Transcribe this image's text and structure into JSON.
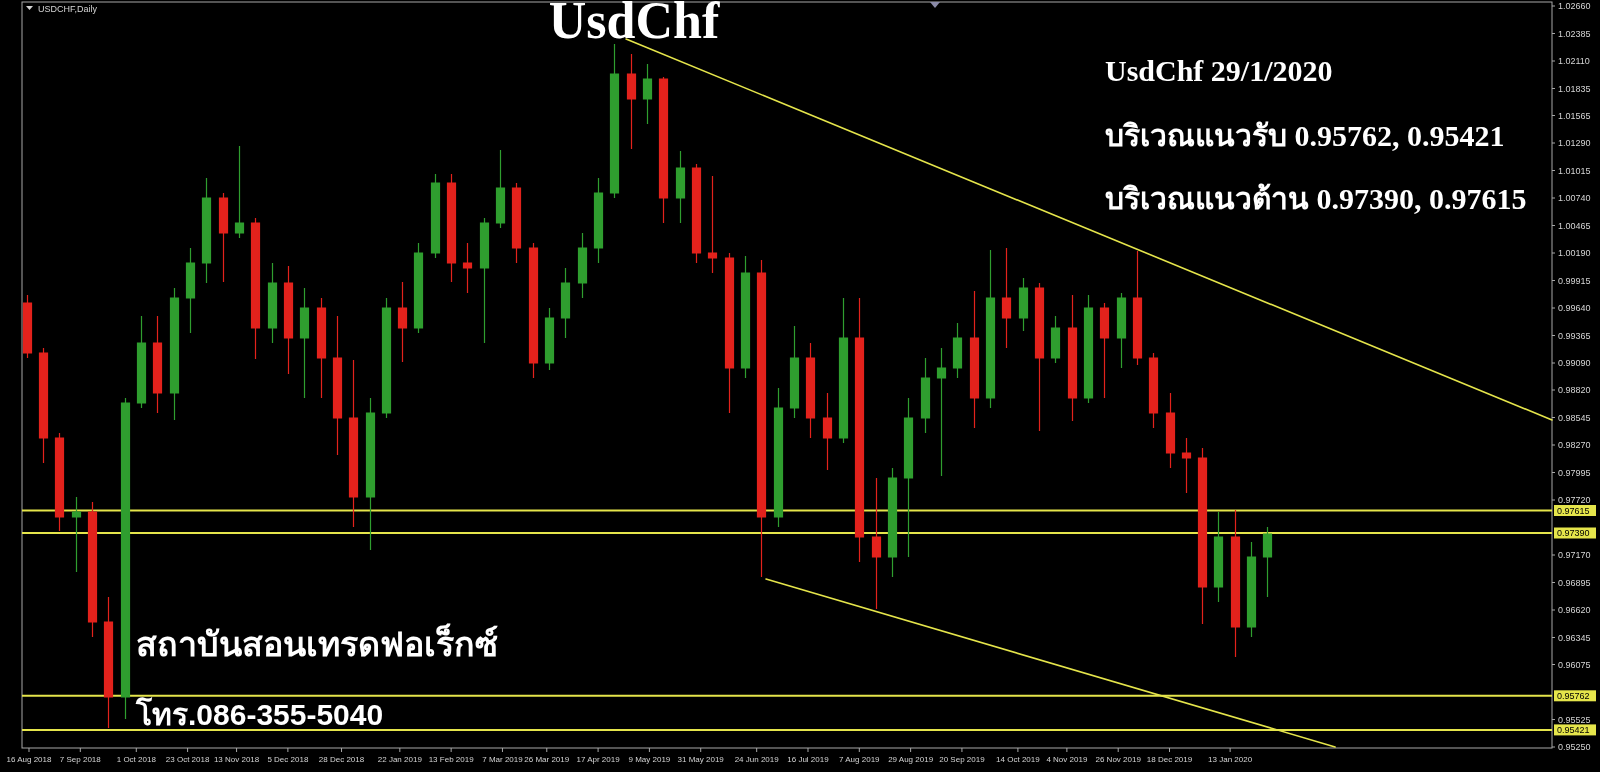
{
  "chart_data": {
    "type": "candlestick",
    "title": "UsdChf",
    "annotations": [
      "USDCHF,Daily",
      "UsdChf 29/1/2020",
      "บริเวณแนวรับ 0.95762, 0.95421",
      "บริเวณแนวต้าน 0.97390, 0.97615",
      "สถาบันสอนเทรดฟอเร็กซ์",
      "โทร.086-355-5040"
    ],
    "x": [
      "2018-08-15",
      "2018-08-22",
      "2018-08-29",
      "2018-09-05",
      "2018-09-12",
      "2018-09-19",
      "2018-09-26",
      "2018-10-03",
      "2018-10-10",
      "2018-10-17",
      "2018-10-24",
      "2018-10-31",
      "2018-11-07",
      "2018-11-14",
      "2018-11-21",
      "2018-11-28",
      "2018-12-05",
      "2018-12-12",
      "2018-12-19",
      "2018-12-26",
      "2019-01-02",
      "2019-01-09",
      "2019-01-16",
      "2019-01-23",
      "2019-01-30",
      "2019-02-06",
      "2019-02-13",
      "2019-02-20",
      "2019-02-27",
      "2019-03-06",
      "2019-03-13",
      "2019-03-20",
      "2019-03-27",
      "2019-04-03",
      "2019-04-10",
      "2019-04-17",
      "2019-04-24",
      "2019-05-01",
      "2019-05-08",
      "2019-05-15",
      "2019-05-22",
      "2019-05-29",
      "2019-06-05",
      "2019-06-12",
      "2019-06-19",
      "2019-06-26",
      "2019-07-03",
      "2019-07-10",
      "2019-07-17",
      "2019-07-24",
      "2019-07-31",
      "2019-08-07",
      "2019-08-14",
      "2019-08-21",
      "2019-08-28",
      "2019-09-04",
      "2019-09-11",
      "2019-09-18",
      "2019-09-25",
      "2019-10-02",
      "2019-10-09",
      "2019-10-16",
      "2019-10-23",
      "2019-10-30",
      "2019-11-06",
      "2019-11-13",
      "2019-11-20",
      "2019-11-27",
      "2019-12-04",
      "2019-12-11",
      "2019-12-18",
      "2019-12-25",
      "2020-01-01",
      "2020-01-08",
      "2020-01-15",
      "2020-01-22",
      "2020-01-29"
    ],
    "ohlc": [
      [
        0.9969,
        0.9977,
        0.9914,
        0.9919
      ],
      [
        0.9919,
        0.9924,
        0.9809,
        0.9834
      ],
      [
        0.9834,
        0.9839,
        0.9741,
        0.9755
      ],
      [
        0.9755,
        0.9775,
        0.97,
        0.976
      ],
      [
        0.976,
        0.977,
        0.9635,
        0.965
      ],
      [
        0.965,
        0.9675,
        0.9544,
        0.9575
      ],
      [
        0.9575,
        0.9874,
        0.9553,
        0.9869
      ],
      [
        0.9869,
        0.9956,
        0.9864,
        0.9929
      ],
      [
        0.9929,
        0.9956,
        0.9859,
        0.9879
      ],
      [
        0.9879,
        0.9984,
        0.9852,
        0.9974
      ],
      [
        0.9974,
        1.0024,
        0.9939,
        1.0009
      ],
      [
        1.0009,
        1.0094,
        0.9989,
        1.0074
      ],
      [
        1.0074,
        1.0079,
        0.999,
        1.0039
      ],
      [
        1.0039,
        1.0126,
        1.0034,
        1.0049
      ],
      [
        1.0049,
        1.0054,
        0.9913,
        0.9944
      ],
      [
        0.9944,
        1.0009,
        0.9929,
        0.9989
      ],
      [
        0.9989,
        1.0006,
        0.9898,
        0.9934
      ],
      [
        0.9934,
        0.9984,
        0.9874,
        0.9964
      ],
      [
        0.9964,
        0.9974,
        0.9874,
        0.9914
      ],
      [
        0.9914,
        0.9956,
        0.9817,
        0.9854
      ],
      [
        0.9854,
        0.9912,
        0.9745,
        0.9775
      ],
      [
        0.9775,
        0.9874,
        0.9722,
        0.9859
      ],
      [
        0.9859,
        0.9974,
        0.9854,
        0.9964
      ],
      [
        0.9964,
        0.999,
        0.991,
        0.9944
      ],
      [
        0.9944,
        1.0029,
        0.9939,
        1.0019
      ],
      [
        1.0019,
        1.0098,
        1.0014,
        1.0089
      ],
      [
        1.0089,
        1.0098,
        0.999,
        1.0009
      ],
      [
        1.0009,
        1.0029,
        0.9979,
        1.0004
      ],
      [
        1.0004,
        1.0054,
        0.9929,
        1.0049
      ],
      [
        1.0049,
        1.0122,
        1.0044,
        1.0084
      ],
      [
        1.0084,
        1.0089,
        1.0009,
        1.0024
      ],
      [
        1.0024,
        1.0029,
        0.9894,
        0.9909
      ],
      [
        0.9909,
        0.9964,
        0.9902,
        0.9954
      ],
      [
        0.9954,
        1.0004,
        0.9934,
        0.9989
      ],
      [
        0.9989,
        1.0039,
        0.9974,
        1.0024
      ],
      [
        1.0024,
        1.0094,
        1.0009,
        1.0079
      ],
      [
        1.0079,
        1.0228,
        1.0074,
        1.0198
      ],
      [
        1.0198,
        1.0218,
        1.0123,
        1.0173
      ],
      [
        1.0173,
        1.0208,
        1.0148,
        1.0193
      ],
      [
        1.0193,
        1.0195,
        1.0049,
        1.0074
      ],
      [
        1.0074,
        1.0121,
        1.0049,
        1.0104
      ],
      [
        1.0104,
        1.0108,
        1.0009,
        1.0019
      ],
      [
        1.0019,
        1.0096,
        0.9999,
        1.0014
      ],
      [
        1.0014,
        1.0019,
        0.9859,
        0.9904
      ],
      [
        0.9904,
        1.0016,
        0.9894,
        0.9999
      ],
      [
        0.9999,
        1.0012,
        0.9695,
        0.9755
      ],
      [
        0.9755,
        0.9884,
        0.9745,
        0.9864
      ],
      [
        0.9864,
        0.9946,
        0.9854,
        0.9914
      ],
      [
        0.9914,
        0.9929,
        0.9834,
        0.9854
      ],
      [
        0.9854,
        0.9879,
        0.9802,
        0.9834
      ],
      [
        0.9834,
        0.9974,
        0.9829,
        0.9934
      ],
      [
        0.9934,
        0.9974,
        0.971,
        0.9735
      ],
      [
        0.9735,
        0.9794,
        0.9663,
        0.9715
      ],
      [
        0.9715,
        0.9804,
        0.9695,
        0.9794
      ],
      [
        0.9794,
        0.9874,
        0.9715,
        0.9854
      ],
      [
        0.9854,
        0.9914,
        0.9839,
        0.9894
      ],
      [
        0.9894,
        0.9924,
        0.9796,
        0.9904
      ],
      [
        0.9904,
        0.9949,
        0.9894,
        0.9934
      ],
      [
        0.9934,
        0.9981,
        0.9844,
        0.9874
      ],
      [
        0.9874,
        1.0022,
        0.9864,
        0.9974
      ],
      [
        0.9974,
        1.0024,
        0.9924,
        0.9954
      ],
      [
        0.9954,
        0.9994,
        0.9941,
        0.9984
      ],
      [
        0.9984,
        0.9989,
        0.9841,
        0.9914
      ],
      [
        0.9914,
        0.9956,
        0.9909,
        0.9944
      ],
      [
        0.9944,
        0.9977,
        0.9851,
        0.9874
      ],
      [
        0.9874,
        0.9977,
        0.9869,
        0.9964
      ],
      [
        0.9964,
        0.9969,
        0.9874,
        0.9934
      ],
      [
        0.9934,
        0.9979,
        0.9904,
        0.9974
      ],
      [
        0.9974,
        1.0021,
        0.9907,
        0.9914
      ],
      [
        0.9914,
        0.9919,
        0.9844,
        0.9859
      ],
      [
        0.9859,
        0.9879,
        0.9804,
        0.9819
      ],
      [
        0.9819,
        0.9834,
        0.9779,
        0.9814
      ],
      [
        0.9814,
        0.9824,
        0.9648,
        0.9685
      ],
      [
        0.9685,
        0.976,
        0.967,
        0.9735
      ],
      [
        0.9735,
        0.9762,
        0.9615,
        0.9645
      ],
      [
        0.9645,
        0.973,
        0.9635,
        0.9715
      ],
      [
        0.9715,
        0.9745,
        0.9675,
        0.9738
      ]
    ],
    "colors": [
      "#e3221c",
      "#e3221c",
      "#e3221c",
      "#2f9e2f",
      "#e3221c",
      "#e3221c",
      "#2f9e2f",
      "#2f9e2f",
      "#e3221c",
      "#2f9e2f",
      "#2f9e2f",
      "#2f9e2f",
      "#e3221c",
      "#2f9e2f",
      "#e3221c",
      "#2f9e2f",
      "#e3221c",
      "#2f9e2f",
      "#e3221c",
      "#e3221c",
      "#e3221c",
      "#2f9e2f",
      "#2f9e2f",
      "#e3221c",
      "#2f9e2f",
      "#2f9e2f",
      "#e3221c",
      "#e3221c",
      "#2f9e2f",
      "#2f9e2f",
      "#e3221c",
      "#e3221c",
      "#2f9e2f",
      "#2f9e2f",
      "#2f9e2f",
      "#2f9e2f",
      "#2f9e2f",
      "#e3221c",
      "#2f9e2f",
      "#e3221c",
      "#2f9e2f",
      "#e3221c",
      "#e3221c",
      "#e3221c",
      "#2f9e2f",
      "#e3221c",
      "#2f9e2f",
      "#2f9e2f",
      "#e3221c",
      "#e3221c",
      "#2f9e2f",
      "#e3221c",
      "#e3221c",
      "#2f9e2f",
      "#2f9e2f",
      "#2f9e2f",
      "#2f9e2f",
      "#2f9e2f",
      "#e3221c",
      "#2f9e2f",
      "#e3221c",
      "#2f9e2f",
      "#e3221c",
      "#2f9e2f",
      "#e3221c",
      "#2f9e2f",
      "#e3221c",
      "#2f9e2f",
      "#e3221c",
      "#e3221c",
      "#e3221c",
      "#e3221c",
      "#e3221c",
      "#2f9e2f",
      "#e3221c",
      "#2f9e2f",
      "#2f9e2f"
    ],
    "series": [
      {
        "type": "line",
        "color": "#e5e54b",
        "x": [
          "2019-04-29",
          "2020-05-30"
        ],
        "values": [
          1.0233,
          0.9852
        ]
      },
      {
        "type": "line",
        "color": "#e5e54b",
        "x": [
          "2019-06-28",
          "2020-02-27"
        ],
        "values": [
          0.9693,
          0.9525
        ]
      }
    ],
    "xlim": [
      "2018-08-13",
      "2020-05-30"
    ],
    "xticks": [
      {
        "value": "2018-08-16",
        "label": "16 Aug 2018"
      },
      {
        "value": "2018-09-07",
        "label": "7 Sep 2018"
      },
      {
        "value": "2018-10-01",
        "label": "1 Oct 2018"
      },
      {
        "value": "2018-10-23",
        "label": "23 Oct 2018"
      },
      {
        "value": "2018-11-13",
        "label": "13 Nov 2018"
      },
      {
        "value": "2018-12-05",
        "label": "5 Dec 2018"
      },
      {
        "value": "2018-12-28",
        "label": "28 Dec 2018"
      },
      {
        "value": "2019-01-22",
        "label": "22 Jan 2019"
      },
      {
        "value": "2019-02-13",
        "label": "13 Feb 2019"
      },
      {
        "value": "2019-03-07",
        "label": "7 Mar 2019"
      },
      {
        "value": "2019-03-26",
        "label": "26 Mar 2019"
      },
      {
        "value": "2019-04-17",
        "label": "17 Apr 2019"
      },
      {
        "value": "2019-05-09",
        "label": "9 May 2019"
      },
      {
        "value": "2019-05-31",
        "label": "31 May 2019"
      },
      {
        "value": "2019-06-24",
        "label": "24 Jun 2019"
      },
      {
        "value": "2019-07-16",
        "label": "16 Jul 2019"
      },
      {
        "value": "2019-08-07",
        "label": "7 Aug 2019"
      },
      {
        "value": "2019-08-29",
        "label": "29 Aug 2019"
      },
      {
        "value": "2019-09-20",
        "label": "20 Sep 2019"
      },
      {
        "value": "2019-10-14",
        "label": "14 Oct 2019"
      },
      {
        "value": "2019-11-04",
        "label": "4 Nov 2019"
      },
      {
        "value": "2019-11-26",
        "label": "26 Nov 2019"
      },
      {
        "value": "2019-12-18",
        "label": "18 Dec 2019"
      },
      {
        "value": "2020-01-13",
        "label": "13 Jan 2020"
      }
    ],
    "ylim": [
      0.9524,
      1.027
    ],
    "yticks": [
      {
        "value": 1.0266,
        "label": "1.02660"
      },
      1.02385,
      {
        "value": 1.0211,
        "label": "1.02110"
      },
      1.01835,
      1.01565,
      {
        "value": 1.0129,
        "label": "1.01290"
      },
      1.01015,
      {
        "value": 1.0074,
        "label": "1.00740"
      },
      1.00465,
      {
        "value": 1.0019,
        "label": "1.00190"
      },
      0.99915,
      {
        "value": 0.9964,
        "label": "0.99640"
      },
      0.99365,
      {
        "value": 0.9909,
        "label": "0.99090"
      },
      {
        "value": 0.9882,
        "label": "0.98820"
      },
      0.98545,
      {
        "value": 0.9827,
        "label": "0.98270"
      },
      0.97995,
      {
        "value": 0.9772,
        "label": "0.97720"
      },
      {
        "value": 0.9717,
        "label": "0.97170"
      },
      0.96895,
      {
        "value": 0.9662,
        "label": "0.96620"
      },
      0.96345,
      0.96075,
      0.95525,
      {
        "value": 0.9525,
        "label": "0.95250"
      }
    ],
    "ref_lines": [
      {
        "axis": "y",
        "value": 0.97615,
        "label": "0.97615",
        "color": "#e5e54b"
      },
      {
        "axis": "y",
        "value": 0.9739,
        "label": "0.97390",
        "color": "#e5e54b"
      },
      {
        "axis": "y",
        "value": 0.95762,
        "label": "0.95762",
        "color": "#e5e54b"
      },
      {
        "axis": "y",
        "value": 0.95421,
        "label": "0.95421",
        "color": "#e5e54b"
      }
    ]
  }
}
